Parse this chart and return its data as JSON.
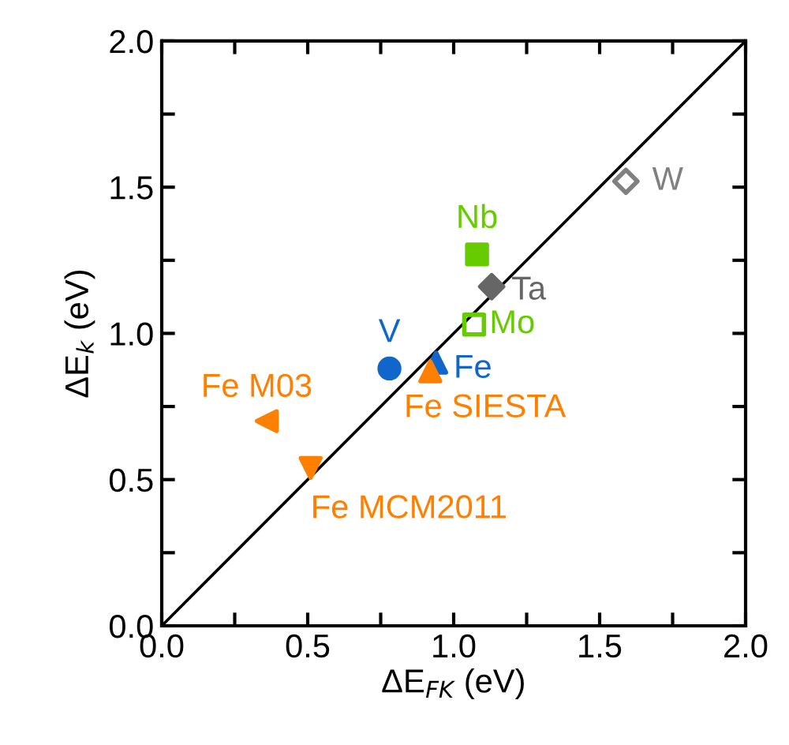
{
  "chart_data": {
    "type": "scatter",
    "xlabel": "ΔE$_{FK}$ (eV)",
    "ylabel": "ΔE$_{k}$ (eV)",
    "xlim": [
      0,
      2
    ],
    "ylim": [
      0,
      2
    ],
    "xticks": [
      {
        "value": 0,
        "label": "0.0"
      },
      {
        "value": 0.25,
        "label": null
      },
      {
        "value": 0.5,
        "label": "0.5"
      },
      {
        "value": 0.75,
        "label": null
      },
      {
        "value": 1,
        "label": "1.0"
      },
      {
        "value": 1.25,
        "label": null
      },
      {
        "value": 1.5,
        "label": "1.5"
      },
      {
        "value": 1.75,
        "label": null
      },
      {
        "value": 2,
        "label": "2.0"
      }
    ],
    "yticks": [
      {
        "value": 0,
        "label": "0.0"
      },
      {
        "value": 0.25,
        "label": null
      },
      {
        "value": 0.5,
        "label": "0.5"
      },
      {
        "value": 0.75,
        "label": null
      },
      {
        "value": 1,
        "label": "1.0"
      },
      {
        "value": 1.25,
        "label": null
      },
      {
        "value": 1.5,
        "label": "1.5"
      },
      {
        "value": 1.75,
        "label": null
      },
      {
        "value": 2,
        "label": "2.0"
      }
    ],
    "grid": false,
    "legend": false,
    "series": [
      {
        "type": "line",
        "color": "#000000",
        "x": [
          0,
          2
        ],
        "values": [
          0,
          2
        ],
        "marker": "none",
        "line_style": "solid"
      },
      {
        "name": "W",
        "color": "#808080",
        "x": [
          1.59
        ],
        "values": [
          1.52
        ],
        "marker": "diamond-open"
      },
      {
        "name": "Nb",
        "color": "#66cc00",
        "x": [
          1.08
        ],
        "values": [
          1.27
        ],
        "marker": "square"
      },
      {
        "name": "Ta",
        "color": "#666666",
        "x": [
          1.13
        ],
        "values": [
          1.16
        ],
        "marker": "diamond"
      },
      {
        "name": "Mo",
        "color": "#66cc00",
        "x": [
          1.07
        ],
        "values": [
          1.03
        ],
        "marker": "square-open"
      },
      {
        "name": "V",
        "color": "#1166cc",
        "x": [
          0.78
        ],
        "values": [
          0.88
        ],
        "marker": "circle"
      },
      {
        "name": "Fe",
        "color": "#1166cc",
        "x": [
          0.94
        ],
        "values": [
          0.9
        ],
        "marker": "triangle"
      },
      {
        "name": "Fe SIESTA",
        "color": "#ff8000",
        "x": [
          0.92
        ],
        "values": [
          0.87
        ],
        "marker": "triangle"
      },
      {
        "name": "Fe M03",
        "color": "#ff8000",
        "x": [
          0.36
        ],
        "values": [
          0.7
        ],
        "marker": "triangle-left"
      },
      {
        "name": "Fe MCM2011",
        "color": "#ff8000",
        "x": [
          0.51
        ],
        "values": [
          0.54
        ],
        "marker": "triangle-down"
      }
    ]
  }
}
